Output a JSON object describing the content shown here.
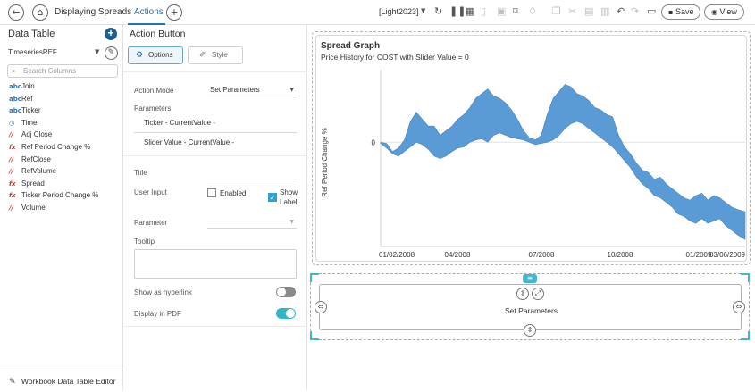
{
  "topbar": {
    "breadcrumb": "Displaying Spreads",
    "active_tab": "Actions",
    "theme_selector": "[Light2023]",
    "save_label": "Save",
    "view_label": "View"
  },
  "left_panel": {
    "title": "Data Table",
    "data_source": "TimeseriesREF",
    "search_placeholder": "Search Columns",
    "columns": [
      {
        "type": "abc",
        "name": "Join"
      },
      {
        "type": "abc",
        "name": "Ref"
      },
      {
        "type": "abc",
        "name": "Ticker"
      },
      {
        "type": "time",
        "name": "Time"
      },
      {
        "type": "num",
        "name": "Adj Close"
      },
      {
        "type": "fx",
        "name": "Ref Period Change %"
      },
      {
        "type": "num",
        "name": "RefClose"
      },
      {
        "type": "num",
        "name": "RefVolume"
      },
      {
        "type": "fx",
        "name": "Spread"
      },
      {
        "type": "fx",
        "name": "Ticker Period Change %"
      },
      {
        "type": "num",
        "name": "Volume"
      }
    ],
    "footer": "Workbook Data Table Editor"
  },
  "mid_panel": {
    "title": "Action Button",
    "options_label": "Options",
    "style_label": "Style",
    "action_mode_label": "Action Mode",
    "action_mode_value": "Set Parameters",
    "parameters_label": "Parameters",
    "param_1": "Ticker - CurrentValue -",
    "param_2": "Slider Value - CurrentValue -",
    "title_label": "Title",
    "user_input_label": "User Input",
    "enabled_label": "Enabled",
    "show_label_1": "Show",
    "show_label_2": "Label",
    "parameter_label": "Parameter",
    "tooltip_label": "Tooltip",
    "hyperlink_label": "Show as hyperlink",
    "pdf_label": "Display in PDF",
    "hyperlink_on": false,
    "pdf_on": true
  },
  "right_panel": {
    "chart_title": "Spread Graph",
    "chart_subtitle": "Price History for COST with Slider Value = 0",
    "button_label": "Set Parameters"
  },
  "chart_data": {
    "type": "area",
    "title": "Spread Graph",
    "subtitle": "Price History for COST with Slider Value = 0",
    "ylabel": "Ref Period Change %",
    "y_tick_labels": [
      "0"
    ],
    "x_tick_labels": [
      "01/02/2008",
      "04/2008",
      "07/2008",
      "10/2008",
      "01/2009",
      "03/06/2009"
    ],
    "x_range": [
      "2008-01-02",
      "2009-03-06"
    ],
    "series": [
      {
        "role": "positive",
        "color": "#5b9bd5"
      },
      {
        "role": "negative",
        "color": "#e0534a"
      }
    ],
    "points": [
      [
        "2008-01-02",
        -0.01,
        0.0
      ],
      [
        "2008-01-09",
        -0.05,
        -0.01
      ],
      [
        "2008-01-16",
        -0.1,
        -0.08
      ],
      [
        "2008-01-23",
        -0.12,
        -0.05
      ],
      [
        "2008-01-30",
        -0.08,
        0.02
      ],
      [
        "2008-02-06",
        -0.04,
        0.18
      ],
      [
        "2008-02-13",
        0.0,
        0.26
      ],
      [
        "2008-02-20",
        -0.02,
        0.2
      ],
      [
        "2008-02-27",
        -0.06,
        0.14
      ],
      [
        "2008-03-05",
        -0.12,
        0.14
      ],
      [
        "2008-03-12",
        -0.14,
        0.06
      ],
      [
        "2008-03-19",
        -0.12,
        0.1
      ],
      [
        "2008-03-26",
        -0.08,
        0.14
      ],
      [
        "2008-04-02",
        -0.05,
        0.2
      ],
      [
        "2008-04-09",
        -0.04,
        0.24
      ],
      [
        "2008-04-16",
        0.0,
        0.3
      ],
      [
        "2008-04-23",
        0.02,
        0.38
      ],
      [
        "2008-04-30",
        0.03,
        0.42
      ],
      [
        "2008-05-07",
        0.0,
        0.46
      ],
      [
        "2008-05-14",
        0.06,
        0.4
      ],
      [
        "2008-05-21",
        0.08,
        0.38
      ],
      [
        "2008-05-28",
        0.06,
        0.34
      ],
      [
        "2008-06-04",
        0.04,
        0.28
      ],
      [
        "2008-06-11",
        0.03,
        0.2
      ],
      [
        "2008-06-18",
        0.02,
        0.1
      ],
      [
        "2008-06-25",
        0.0,
        0.04
      ],
      [
        "2008-07-02",
        -0.02,
        0.02
      ],
      [
        "2008-07-09",
        -0.01,
        0.06
      ],
      [
        "2008-07-16",
        0.0,
        0.24
      ],
      [
        "2008-07-23",
        0.02,
        0.38
      ],
      [
        "2008-07-30",
        0.06,
        0.44
      ],
      [
        "2008-08-06",
        0.12,
        0.5
      ],
      [
        "2008-08-13",
        0.16,
        0.48
      ],
      [
        "2008-08-20",
        0.18,
        0.42
      ],
      [
        "2008-08-27",
        0.16,
        0.4
      ],
      [
        "2008-09-03",
        0.12,
        0.36
      ],
      [
        "2008-09-10",
        0.08,
        0.3
      ],
      [
        "2008-09-17",
        0.04,
        0.28
      ],
      [
        "2008-09-24",
        0.0,
        0.24
      ],
      [
        "2008-10-01",
        -0.04,
        0.22
      ],
      [
        "2008-10-08",
        -0.1,
        0.06
      ],
      [
        "2008-10-15",
        -0.16,
        -0.04
      ],
      [
        "2008-10-22",
        -0.22,
        -0.1
      ],
      [
        "2008-10-29",
        -0.3,
        -0.18
      ],
      [
        "2008-11-05",
        -0.36,
        -0.24
      ],
      [
        "2008-11-12",
        -0.4,
        -0.26
      ],
      [
        "2008-11-19",
        -0.46,
        -0.32
      ],
      [
        "2008-11-26",
        -0.48,
        -0.3
      ],
      [
        "2008-12-03",
        -0.52,
        -0.36
      ],
      [
        "2008-12-10",
        -0.56,
        -0.4
      ],
      [
        "2008-12-17",
        -0.62,
        -0.44
      ],
      [
        "2008-12-24",
        -0.64,
        -0.48
      ],
      [
        "2008-12-31",
        -0.68,
        -0.5
      ],
      [
        "2009-01-07",
        -0.7,
        -0.46
      ],
      [
        "2009-01-14",
        -0.66,
        -0.44
      ],
      [
        "2009-01-21",
        -0.7,
        -0.5
      ],
      [
        "2009-01-28",
        -0.68,
        -0.46
      ],
      [
        "2009-02-04",
        -0.66,
        -0.48
      ],
      [
        "2009-02-11",
        -0.72,
        -0.52
      ],
      [
        "2009-02-18",
        -0.76,
        -0.56
      ],
      [
        "2009-02-25",
        -0.8,
        -0.58
      ],
      [
        "2009-03-06",
        -0.84,
        -0.6
      ]
    ]
  }
}
